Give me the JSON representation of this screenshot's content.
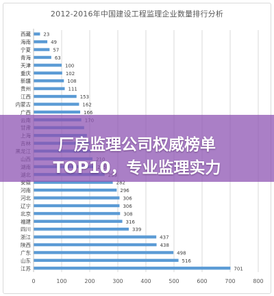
{
  "chart_data": {
    "type": "bar",
    "orientation": "horizontal",
    "title": "2012-2016年中国建设工程监理企业数量排行分析",
    "categories": [
      "西藏",
      "海南",
      "宁夏",
      "青海",
      "天津",
      "重庆",
      "新疆",
      "贵州",
      "江西",
      "内蒙古",
      "广西",
      "云南",
      "甘肃",
      "上海",
      "吉林",
      "黑龙江",
      "山西",
      "湖南",
      "湖北",
      "安徽",
      "河南",
      "河北",
      "辽宁",
      "北京",
      "福建",
      "四川",
      "浙江",
      "陕西",
      "广东",
      "山东",
      "江苏"
    ],
    "values": [
      23,
      49,
      57,
      63,
      100,
      102,
      108,
      111,
      153,
      162,
      166,
      170,
      180,
      190,
      200,
      205,
      210,
      215,
      253,
      282,
      296,
      306,
      306,
      308,
      316,
      339,
      437,
      438,
      498,
      516,
      701
    ],
    "visible_value_labels": [
      23,
      49,
      57,
      63,
      100,
      102,
      108,
      111,
      153,
      162,
      166,
      170,
      null,
      null,
      null,
      null,
      210,
      215,
      253,
      282,
      296,
      306,
      306,
      308,
      316,
      339,
      437,
      438,
      498,
      516,
      701
    ],
    "xlim": [
      0,
      800
    ],
    "xticks": [
      0,
      100,
      200,
      300,
      400,
      500,
      600,
      700,
      800
    ],
    "grid": true,
    "xlabel": "",
    "ylabel": "",
    "bar_color": "#5b9bd5"
  },
  "banner": {
    "line1": "厂房监理公司权威榜单",
    "line2": "TOP10，专业监理实力"
  },
  "colors": {
    "banner_bg": "#8c52b2",
    "grid": "#d9d9d9",
    "label_text": "#404040"
  }
}
